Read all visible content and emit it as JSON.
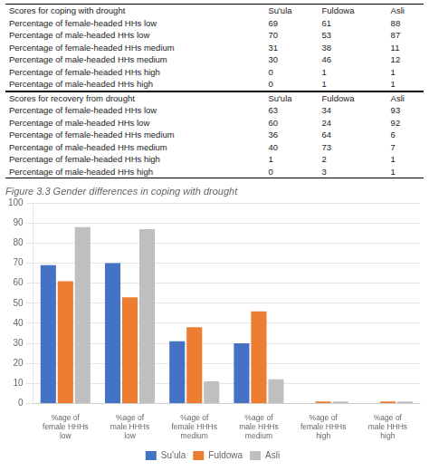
{
  "chart_data": [
    {
      "type": "table",
      "title": "Scores for coping with drought",
      "categories": [
        "Percentage of female-headed HHs low",
        "Percentage of male-headed HHs low",
        "Percentage of female-headed HHs medium",
        "Percentage of male-headed HHs medium",
        "Percentage of female-headed HHs high",
        "Percentage of male-headed HHs high"
      ],
      "series": [
        {
          "name": "Su'ula",
          "values": [
            69,
            70,
            31,
            30,
            0,
            0
          ]
        },
        {
          "name": "Fuldowa",
          "values": [
            61,
            53,
            38,
            46,
            1,
            1
          ]
        },
        {
          "name": "Asli",
          "values": [
            88,
            87,
            11,
            12,
            1,
            1
          ]
        }
      ]
    },
    {
      "type": "table",
      "title": "Scores for recovery from drought",
      "categories": [
        "Percentage of female-headed HHs low",
        "Percentage of male-headed HHs low",
        "Percentage of female-headed HHs medium",
        "Percentage of male-headed HHs medium",
        "Percentage of female-headed HHs high",
        "Percentage of male-headed HHs high"
      ],
      "series": [
        {
          "name": "Su'ula",
          "values": [
            63,
            60,
            36,
            40,
            1,
            0
          ]
        },
        {
          "name": "Fuldowa",
          "values": [
            34,
            24,
            64,
            73,
            2,
            3
          ]
        },
        {
          "name": "Asli",
          "values": [
            93,
            92,
            6,
            7,
            1,
            1
          ]
        }
      ]
    },
    {
      "type": "bar",
      "title": "Figure 3.3 Gender differences in coping with drought",
      "categories": [
        "%age of\nfemale HHHs\nlow",
        "%age of\nmale HHHs\nlow",
        "%age of\nfemale HHHs\nmedium",
        "%age of\nmale HHHs\nmedium",
        "%age of\nfemale HHHs\nhigh",
        "%age of\nmale HHHs\nhigh"
      ],
      "series": [
        {
          "name": "Su'ula",
          "color": "#4472C4",
          "values": [
            69,
            70,
            31,
            30,
            0,
            0
          ]
        },
        {
          "name": "Fuldowa",
          "color": "#ED7D31",
          "values": [
            61,
            53,
            38,
            46,
            1,
            1
          ]
        },
        {
          "name": "Asli",
          "color": "#BFBFBF",
          "values": [
            88,
            87,
            11,
            12,
            1,
            1
          ]
        }
      ],
      "ylim": [
        0,
        100
      ],
      "yticks": [
        0,
        10,
        20,
        30,
        40,
        50,
        60,
        70,
        80,
        90,
        100
      ],
      "grid": true,
      "legend": "bottom"
    }
  ]
}
